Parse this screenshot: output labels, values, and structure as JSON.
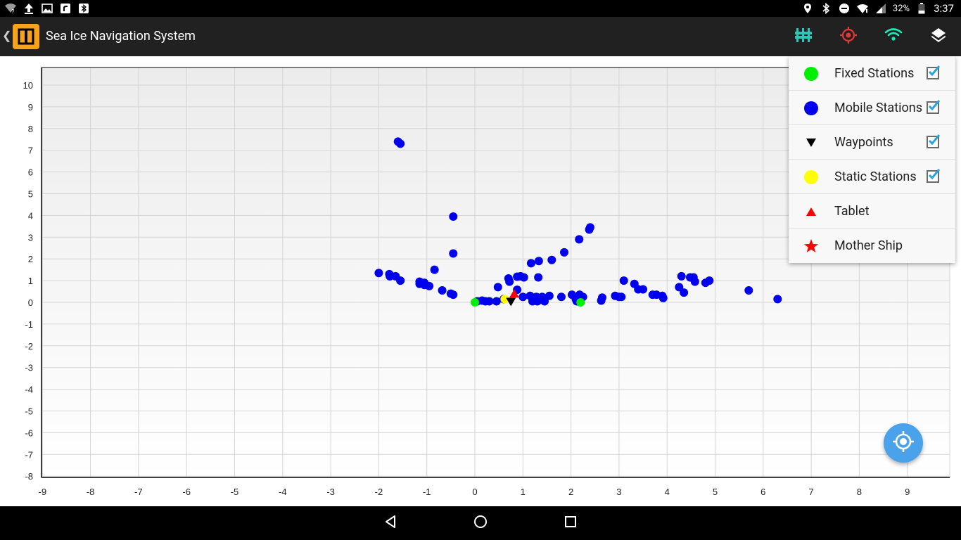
{
  "status_bar": {
    "battery_percent": "32%",
    "time": "3:37",
    "left_icons": [
      "wifi-question-icon",
      "upload-icon",
      "image-icon",
      "app-icon",
      "bluetooth-icon"
    ],
    "right_icons": [
      "location-icon",
      "bluetooth-icon",
      "do-not-disturb-icon",
      "wifi-icon",
      "signal-icon",
      "battery-icon"
    ]
  },
  "app_bar": {
    "title": "Sea Ice Navigation System",
    "actions": [
      "stations-filter-icon",
      "target-icon",
      "wifi-icon",
      "layers-icon"
    ],
    "colors": {
      "stations": "#2ec4b6",
      "target": "#e53935",
      "wifi": "#1de9b6",
      "layers": "#ffffff"
    }
  },
  "legend": {
    "items": [
      {
        "label": "Fixed Stations",
        "symbol": "circle",
        "color": "#00ee00",
        "checked": true
      },
      {
        "label": "Mobile Stations",
        "symbol": "circle",
        "color": "#0000ee",
        "checked": true
      },
      {
        "label": "Waypoints",
        "symbol": "triangle-down",
        "color": "#000000",
        "checked": true
      },
      {
        "label": "Static Stations",
        "symbol": "circle",
        "color": "#ffff00",
        "checked": true
      },
      {
        "label": "Tablet",
        "symbol": "triangle-up",
        "color": "#ff0000",
        "checked": null
      },
      {
        "label": "Mother Ship",
        "symbol": "star",
        "color": "#ff0000",
        "checked": null
      }
    ]
  },
  "chart_data": {
    "type": "scatter",
    "title": "",
    "xlabel": "",
    "ylabel": "",
    "xlim": [
      -9,
      10
    ],
    "ylim": [
      -8,
      10.8
    ],
    "xticks": [
      -9,
      -8,
      -7,
      -6,
      -5,
      -4,
      -3,
      -2,
      -1,
      0,
      1,
      2,
      3,
      4,
      5,
      6,
      7,
      8,
      9
    ],
    "yticks": [
      -8,
      -7,
      -6,
      -5,
      -4,
      -3,
      -2,
      -1,
      0,
      1,
      2,
      3,
      4,
      5,
      6,
      7,
      8,
      9,
      10
    ],
    "grid": true,
    "series": [
      {
        "name": "Mobile Stations",
        "color": "#0000ee",
        "marker": "circle",
        "points": [
          [
            -1.6,
            7.4
          ],
          [
            -1.55,
            7.3
          ],
          [
            -0.45,
            3.95
          ],
          [
            -0.45,
            2.25
          ],
          [
            2.4,
            3.45
          ],
          [
            2.38,
            3.35
          ],
          [
            2.17,
            2.9
          ],
          [
            1.86,
            2.3
          ],
          [
            1.6,
            1.95
          ],
          [
            1.33,
            1.9
          ],
          [
            1.17,
            1.8
          ],
          [
            -2.0,
            1.35
          ],
          [
            -1.78,
            1.3
          ],
          [
            -1.77,
            1.2
          ],
          [
            -1.65,
            1.2
          ],
          [
            -1.55,
            1.0
          ],
          [
            -0.84,
            1.5
          ],
          [
            -1.15,
            0.95
          ],
          [
            -1.15,
            0.85
          ],
          [
            -1.05,
            0.9
          ],
          [
            -1.05,
            0.8
          ],
          [
            -0.95,
            0.75
          ],
          [
            -0.68,
            0.55
          ],
          [
            -0.5,
            0.4
          ],
          [
            -0.45,
            0.35
          ],
          [
            0.7,
            1.1
          ],
          [
            0.72,
            0.95
          ],
          [
            0.88,
            1.18
          ],
          [
            0.95,
            1.2
          ],
          [
            1.02,
            1.15
          ],
          [
            1.32,
            1.15
          ],
          [
            0.48,
            0.7
          ],
          [
            0.88,
            0.58
          ],
          [
            0.05,
            0.05
          ],
          [
            0.15,
            0.08
          ],
          [
            0.22,
            0.05
          ],
          [
            0.3,
            0.05
          ],
          [
            0.45,
            0.05
          ],
          [
            0.6,
            0.15
          ],
          [
            1.0,
            0.25
          ],
          [
            1.15,
            0.3
          ],
          [
            1.2,
            0.15
          ],
          [
            1.2,
            0.05
          ],
          [
            1.28,
            0.25
          ],
          [
            1.3,
            0.05
          ],
          [
            1.35,
            0.15
          ],
          [
            1.4,
            0.25
          ],
          [
            1.45,
            0.05
          ],
          [
            1.55,
            0.3
          ],
          [
            1.8,
            0.25
          ],
          [
            2.02,
            0.35
          ],
          [
            2.1,
            0.15
          ],
          [
            2.12,
            0.05
          ],
          [
            2.18,
            0.35
          ],
          [
            2.25,
            0.25
          ],
          [
            2.63,
            0.08
          ],
          [
            2.65,
            0.22
          ],
          [
            2.92,
            0.3
          ],
          [
            3.0,
            0.25
          ],
          [
            3.05,
            0.25
          ],
          [
            3.1,
            1.0
          ],
          [
            3.32,
            0.85
          ],
          [
            3.4,
            0.6
          ],
          [
            3.5,
            0.6
          ],
          [
            3.7,
            0.35
          ],
          [
            3.78,
            0.35
          ],
          [
            3.9,
            0.3
          ],
          [
            3.92,
            0.2
          ],
          [
            4.25,
            0.7
          ],
          [
            4.3,
            1.2
          ],
          [
            4.35,
            0.45
          ],
          [
            4.48,
            1.15
          ],
          [
            4.55,
            1.15
          ],
          [
            4.58,
            0.95
          ],
          [
            4.8,
            0.9
          ],
          [
            4.88,
            1.0
          ],
          [
            5.7,
            0.55
          ],
          [
            6.3,
            0.15
          ]
        ]
      },
      {
        "name": "Fixed Stations",
        "color": "#00ee00",
        "marker": "circle",
        "points": [
          [
            0.0,
            0.0
          ],
          [
            2.2,
            0.0
          ]
        ]
      },
      {
        "name": "Static Stations",
        "color": "#ffff00",
        "marker": "circle",
        "points": [
          [
            0.62,
            0.15
          ]
        ]
      },
      {
        "name": "Tablet",
        "color": "#ff0000",
        "marker": "triangle-up",
        "points": [
          [
            0.82,
            0.38
          ]
        ]
      },
      {
        "name": "Waypoints",
        "color": "#000000",
        "marker": "triangle-down",
        "points": [
          [
            0.75,
            0.05
          ]
        ]
      }
    ]
  }
}
